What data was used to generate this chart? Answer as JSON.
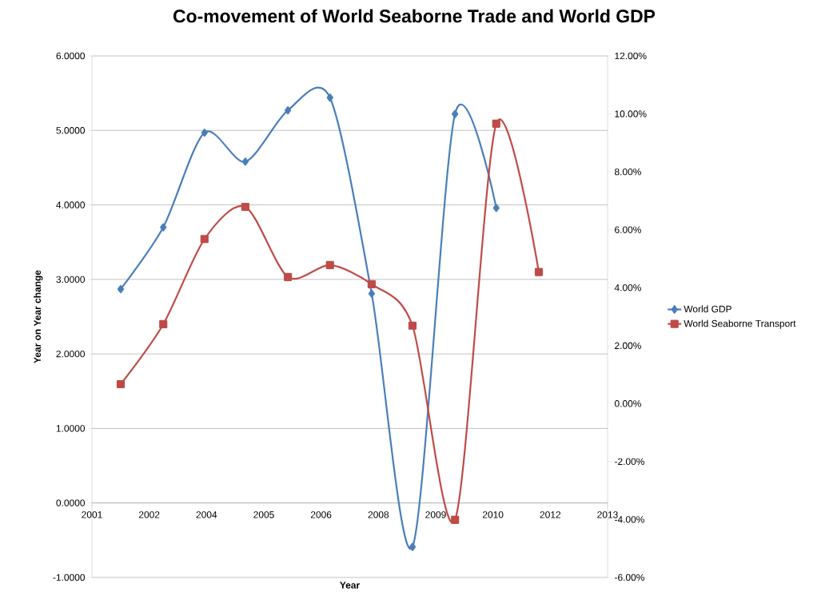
{
  "chart_data": {
    "type": "line",
    "title": "Co-movement of World Seaborne Trade and World GDP",
    "xlabel": "Year",
    "ylabel": "Year on Year change",
    "xlim": [
      2001,
      2013
    ],
    "xticks": [
      {
        "value": 2001,
        "label": "2001"
      },
      {
        "value": 2002.333,
        "label": "2002"
      },
      {
        "value": 2003.667,
        "label": "2004"
      },
      {
        "value": 2005,
        "label": "2005"
      },
      {
        "value": 2006.333,
        "label": "2006"
      },
      {
        "value": 2007.667,
        "label": "2008"
      },
      {
        "value": 2009,
        "label": "2009"
      },
      {
        "value": 2010.333,
        "label": "2010"
      },
      {
        "value": 2011.667,
        "label": "2012"
      },
      {
        "value": 2013,
        "label": "2013"
      }
    ],
    "ylim": [
      -1,
      6
    ],
    "yticks": [
      {
        "value": -1,
        "label": "-1.0000"
      },
      {
        "value": 0,
        "label": "0.0000"
      },
      {
        "value": 1,
        "label": "1.0000"
      },
      {
        "value": 2,
        "label": "2.0000"
      },
      {
        "value": 3,
        "label": "3.0000"
      },
      {
        "value": 4,
        "label": "4.0000"
      },
      {
        "value": 5,
        "label": "5.0000"
      },
      {
        "value": 6,
        "label": "6.0000"
      }
    ],
    "y2lim": [
      -6,
      12
    ],
    "y2ticks": [
      {
        "value": -6,
        "label": "-6.00%"
      },
      {
        "value": -4,
        "label": "-4.00%"
      },
      {
        "value": -2,
        "label": "-2.00%"
      },
      {
        "value": 0,
        "label": "0.00%"
      },
      {
        "value": 2,
        "label": "2.00%"
      },
      {
        "value": 4,
        "label": "4.00%"
      },
      {
        "value": 6,
        "label": "6.00%"
      },
      {
        "value": 8,
        "label": "8.00%"
      },
      {
        "value": 10,
        "label": "10.00%"
      },
      {
        "value": 12,
        "label": "12.00%"
      }
    ],
    "x": [
      2001.67,
      2002.66,
      2003.62,
      2004.57,
      2005.56,
      2006.54,
      2007.51,
      2008.46,
      2009.45,
      2010.41,
      2011.4
    ],
    "series": [
      {
        "name": "World GDP",
        "color": "#4a7ebb",
        "marker": "diamond",
        "values": [
          2.87,
          3.7,
          4.97,
          4.58,
          5.27,
          5.44,
          2.81,
          -0.59,
          5.22,
          3.96,
          null
        ]
      },
      {
        "name": "World Seaborne Transport",
        "color": "#be4b48",
        "marker": "square",
        "axis": "y2",
        "values": [
          0.67,
          2.74,
          5.68,
          6.79,
          4.37,
          4.78,
          4.12,
          2.69,
          -4.01,
          9.66,
          4.54
        ]
      }
    ],
    "grid": "y",
    "legend": "right",
    "line_style": "solid"
  }
}
